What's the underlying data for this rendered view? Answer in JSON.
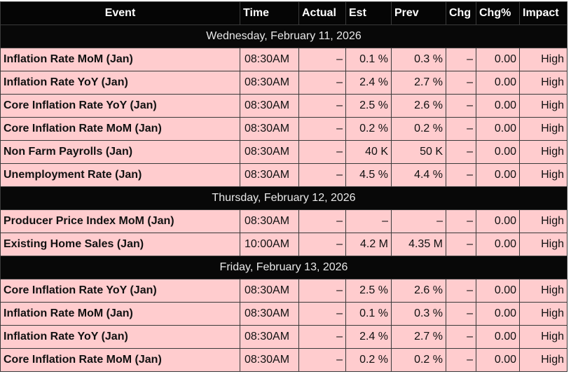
{
  "headers": [
    "Event",
    "Time",
    "Actual",
    "Est",
    "Prev",
    "Chg",
    "Chg%",
    "Impact"
  ],
  "groups": [
    {
      "date": "Wednesday, February 11, 2026",
      "rows": [
        [
          "Inflation Rate MoM (Jan)",
          "08:30AM",
          "–",
          "0.1 %",
          "0.3 %",
          "–",
          "0.00",
          "High"
        ],
        [
          "Inflation Rate YoY (Jan)",
          "08:30AM",
          "–",
          "2.4 %",
          "2.7 %",
          "–",
          "0.00",
          "High"
        ],
        [
          "Core Inflation Rate YoY (Jan)",
          "08:30AM",
          "–",
          "2.5 %",
          "2.6 %",
          "–",
          "0.00",
          "High"
        ],
        [
          "Core Inflation Rate MoM (Jan)",
          "08:30AM",
          "–",
          "0.2 %",
          "0.2 %",
          "–",
          "0.00",
          "High"
        ],
        [
          "Non Farm Payrolls (Jan)",
          "08:30AM",
          "–",
          "40 K",
          "50 K",
          "–",
          "0.00",
          "High"
        ],
        [
          "Unemployment Rate (Jan)",
          "08:30AM",
          "–",
          "4.5 %",
          "4.4 %",
          "–",
          "0.00",
          "High"
        ]
      ]
    },
    {
      "date": "Thursday, February 12, 2026",
      "rows": [
        [
          "Producer Price Index MoM (Jan)",
          "08:30AM",
          "–",
          "–",
          "–",
          "–",
          "0.00",
          "High"
        ],
        [
          "Existing Home Sales (Jan)",
          "10:00AM",
          "–",
          "4.2 M",
          "4.35 M",
          "–",
          "0.00",
          "High"
        ]
      ]
    },
    {
      "date": "Friday, February 13, 2026",
      "rows": [
        [
          "Core Inflation Rate YoY (Jan)",
          "08:30AM",
          "–",
          "2.5 %",
          "2.6 %",
          "–",
          "0.00",
          "High"
        ],
        [
          "Inflation Rate MoM (Jan)",
          "08:30AM",
          "–",
          "0.1 %",
          "0.3 %",
          "–",
          "0.00",
          "High"
        ],
        [
          "Inflation Rate YoY (Jan)",
          "08:30AM",
          "–",
          "2.4 %",
          "2.7 %",
          "–",
          "0.00",
          "High"
        ],
        [
          "Core Inflation Rate MoM (Jan)",
          "08:30AM",
          "–",
          "0.2 %",
          "0.2 %",
          "–",
          "0.00",
          "High"
        ]
      ]
    }
  ]
}
